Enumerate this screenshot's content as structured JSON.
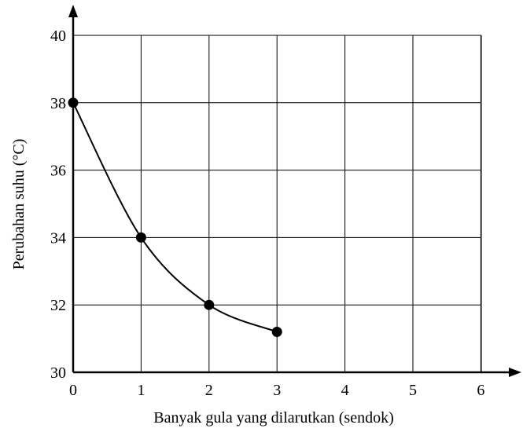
{
  "chart_data": {
    "type": "line",
    "title": "",
    "xlabel": "Banyak gula yang dilarutkan (sendok)",
    "ylabel": "Perubahan suhu (°C)",
    "x_ticks": [
      "0",
      "1",
      "2",
      "3",
      "4",
      "5",
      "6"
    ],
    "y_ticks": [
      "30",
      "32",
      "34",
      "36",
      "38",
      "40"
    ],
    "xlim": [
      0,
      8
    ],
    "ylim": [
      30,
      40
    ],
    "grid": true,
    "series": [
      {
        "points": [
          {
            "x": 0,
            "y": 38
          },
          {
            "x": 1,
            "y": 34
          },
          {
            "x": 2,
            "y": 32
          },
          {
            "x": 3,
            "y": 31.2
          }
        ]
      }
    ]
  }
}
